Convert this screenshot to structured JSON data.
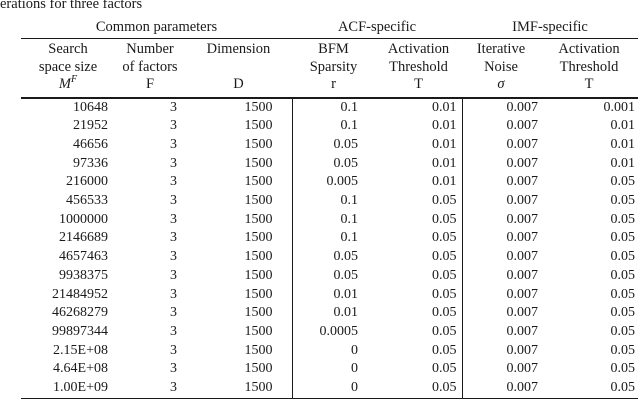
{
  "caption": "erations for three factors",
  "colors": {
    "text": "#1a1a1a",
    "background": "#ffffff",
    "rule": "#1a1a1a"
  },
  "table": {
    "group_headers": [
      {
        "label": "Common parameters",
        "span": 3
      },
      {
        "label": "ACF-specific",
        "span": 2
      },
      {
        "label": "IMF-specific",
        "span": 2
      }
    ],
    "columns": [
      {
        "key": "search-space-size",
        "lines": [
          "Search",
          "space size"
        ],
        "symbol": "M",
        "symbol_sup": "F",
        "symbol_italic": true
      },
      {
        "key": "number-of-factors",
        "lines": [
          "Number",
          "of factors"
        ],
        "symbol": "F",
        "symbol_italic": false
      },
      {
        "key": "dimension",
        "lines": [
          "Dimension",
          ""
        ],
        "symbol": "D",
        "symbol_italic": false
      },
      {
        "key": "bfm-sparsity",
        "lines": [
          "BFM",
          "Sparsity"
        ],
        "symbol": "r",
        "symbol_italic": false
      },
      {
        "key": "acf-activation-threshold",
        "lines": [
          "Activation",
          "Threshold"
        ],
        "symbol": "T",
        "symbol_italic": false
      },
      {
        "key": "iterative-noise",
        "lines": [
          "Iterative",
          "Noise"
        ],
        "symbol": "σ",
        "symbol_italic": true
      },
      {
        "key": "imf-activation-threshold",
        "lines": [
          "Activation",
          "Threshold"
        ],
        "symbol": "T",
        "symbol_italic": false
      }
    ],
    "rows": [
      [
        "10648",
        "3",
        "1500",
        "0.1",
        "0.01",
        "0.007",
        "0.001"
      ],
      [
        "21952",
        "3",
        "1500",
        "0.1",
        "0.01",
        "0.007",
        "0.01"
      ],
      [
        "46656",
        "3",
        "1500",
        "0.05",
        "0.01",
        "0.007",
        "0.01"
      ],
      [
        "97336",
        "3",
        "1500",
        "0.05",
        "0.01",
        "0.007",
        "0.01"
      ],
      [
        "216000",
        "3",
        "1500",
        "0.005",
        "0.01",
        "0.007",
        "0.05"
      ],
      [
        "456533",
        "3",
        "1500",
        "0.1",
        "0.05",
        "0.007",
        "0.05"
      ],
      [
        "1000000",
        "3",
        "1500",
        "0.1",
        "0.05",
        "0.007",
        "0.05"
      ],
      [
        "2146689",
        "3",
        "1500",
        "0.1",
        "0.05",
        "0.007",
        "0.05"
      ],
      [
        "4657463",
        "3",
        "1500",
        "0.05",
        "0.05",
        "0.007",
        "0.05"
      ],
      [
        "9938375",
        "3",
        "1500",
        "0.05",
        "0.05",
        "0.007",
        "0.05"
      ],
      [
        "21484952",
        "3",
        "1500",
        "0.01",
        "0.05",
        "0.007",
        "0.05"
      ],
      [
        "46268279",
        "3",
        "1500",
        "0.01",
        "0.05",
        "0.007",
        "0.05"
      ],
      [
        "99897344",
        "3",
        "1500",
        "0.0005",
        "0.05",
        "0.007",
        "0.05"
      ],
      [
        "2.15E+08",
        "3",
        "1500",
        "0",
        "0.05",
        "0.007",
        "0.05"
      ],
      [
        "4.64E+08",
        "3",
        "1500",
        "0",
        "0.05",
        "0.007",
        "0.05"
      ],
      [
        "1.00E+09",
        "3",
        "1500",
        "0",
        "0.05",
        "0.007",
        "0.05"
      ]
    ]
  }
}
